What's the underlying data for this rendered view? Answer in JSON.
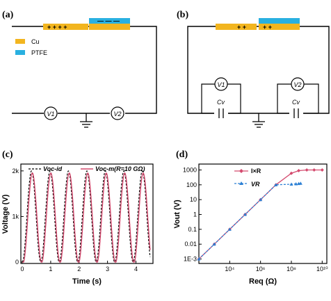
{
  "panels": {
    "a": {
      "label": "(a)",
      "legend": [
        {
          "label": "Cu",
          "color": "#f2b51f"
        },
        {
          "label": "PTFE",
          "color": "#29b0e0"
        }
      ],
      "charges_left": "+ + + +",
      "charges_ptfe": "— — —",
      "voltmeter_1": "V1",
      "voltmeter_2": "V2"
    },
    "b": {
      "label": "(b)",
      "charges_left": "+ +",
      "charges_right": "+ +",
      "voltmeter_1": "V1",
      "voltmeter_2": "V2",
      "capacitor_1": "Cv",
      "capacitor_2": "Cv"
    }
  },
  "chart_data": [
    {
      "panel": "(c)",
      "type": "line",
      "xlabel": "Time (s)",
      "ylabel": "Voltage (V)",
      "xlim": [
        -0.05,
        4.6
      ],
      "ylim": [
        -30,
        2150
      ],
      "xticks": [
        "0",
        "1",
        "2",
        "3",
        "4"
      ],
      "yticks": [
        "0",
        "1k",
        "2k"
      ],
      "ytick_values": [
        0,
        1000,
        2000
      ],
      "legend_position": "top",
      "series": [
        {
          "name": "Voc-id",
          "style": "dashed",
          "color": "#000000",
          "period": 0.65,
          "amplitude": 2000,
          "t_end": 4.5
        },
        {
          "name": "Voc-m(R=10 GΩ)",
          "style": "solid",
          "color": "#d44a6e",
          "period": 0.65,
          "amplitude": 2000,
          "t_end": 4.5
        }
      ]
    },
    {
      "panel": "(d)",
      "type": "line",
      "scale": "log-log",
      "xlabel": "Req (Ω)",
      "ylabel": "Vout (V)",
      "xlim": [
        100,
        20000000000
      ],
      "ylim": [
        0.0005,
        2500
      ],
      "xticks": [
        "10⁴",
        "10⁶",
        "10⁸",
        "10¹⁰"
      ],
      "xtick_values": [
        10000,
        1000000,
        100000000,
        10000000000
      ],
      "yticks": [
        "1E-3",
        "0.01",
        "0.1",
        "1",
        "10",
        "100",
        "1000"
      ],
      "ytick_values": [
        0.001,
        0.01,
        0.1,
        1,
        10,
        100,
        1000
      ],
      "legend_position": "top-left",
      "series": [
        {
          "name": "I×R",
          "color": "#d44a6e",
          "marker": "diamond",
          "x": [
            100,
            1000,
            10000,
            100000,
            1000000,
            10000000,
            100000000,
            300000000,
            1000000000,
            3000000000,
            10000000000
          ],
          "y": [
            0.001,
            0.01,
            0.1,
            1,
            10,
            100,
            600,
            900,
            1000,
            1000,
            1000
          ]
        },
        {
          "name": "VR",
          "color": "#2a7fd4",
          "marker": "triangle",
          "x": [
            100,
            1000,
            10000,
            100000,
            1000000,
            10000000,
            100000000,
            200000000,
            300000000,
            400000000
          ],
          "y": [
            0.001,
            0.01,
            0.1,
            1,
            10,
            100,
            110,
            115,
            120,
            125
          ]
        }
      ]
    }
  ]
}
